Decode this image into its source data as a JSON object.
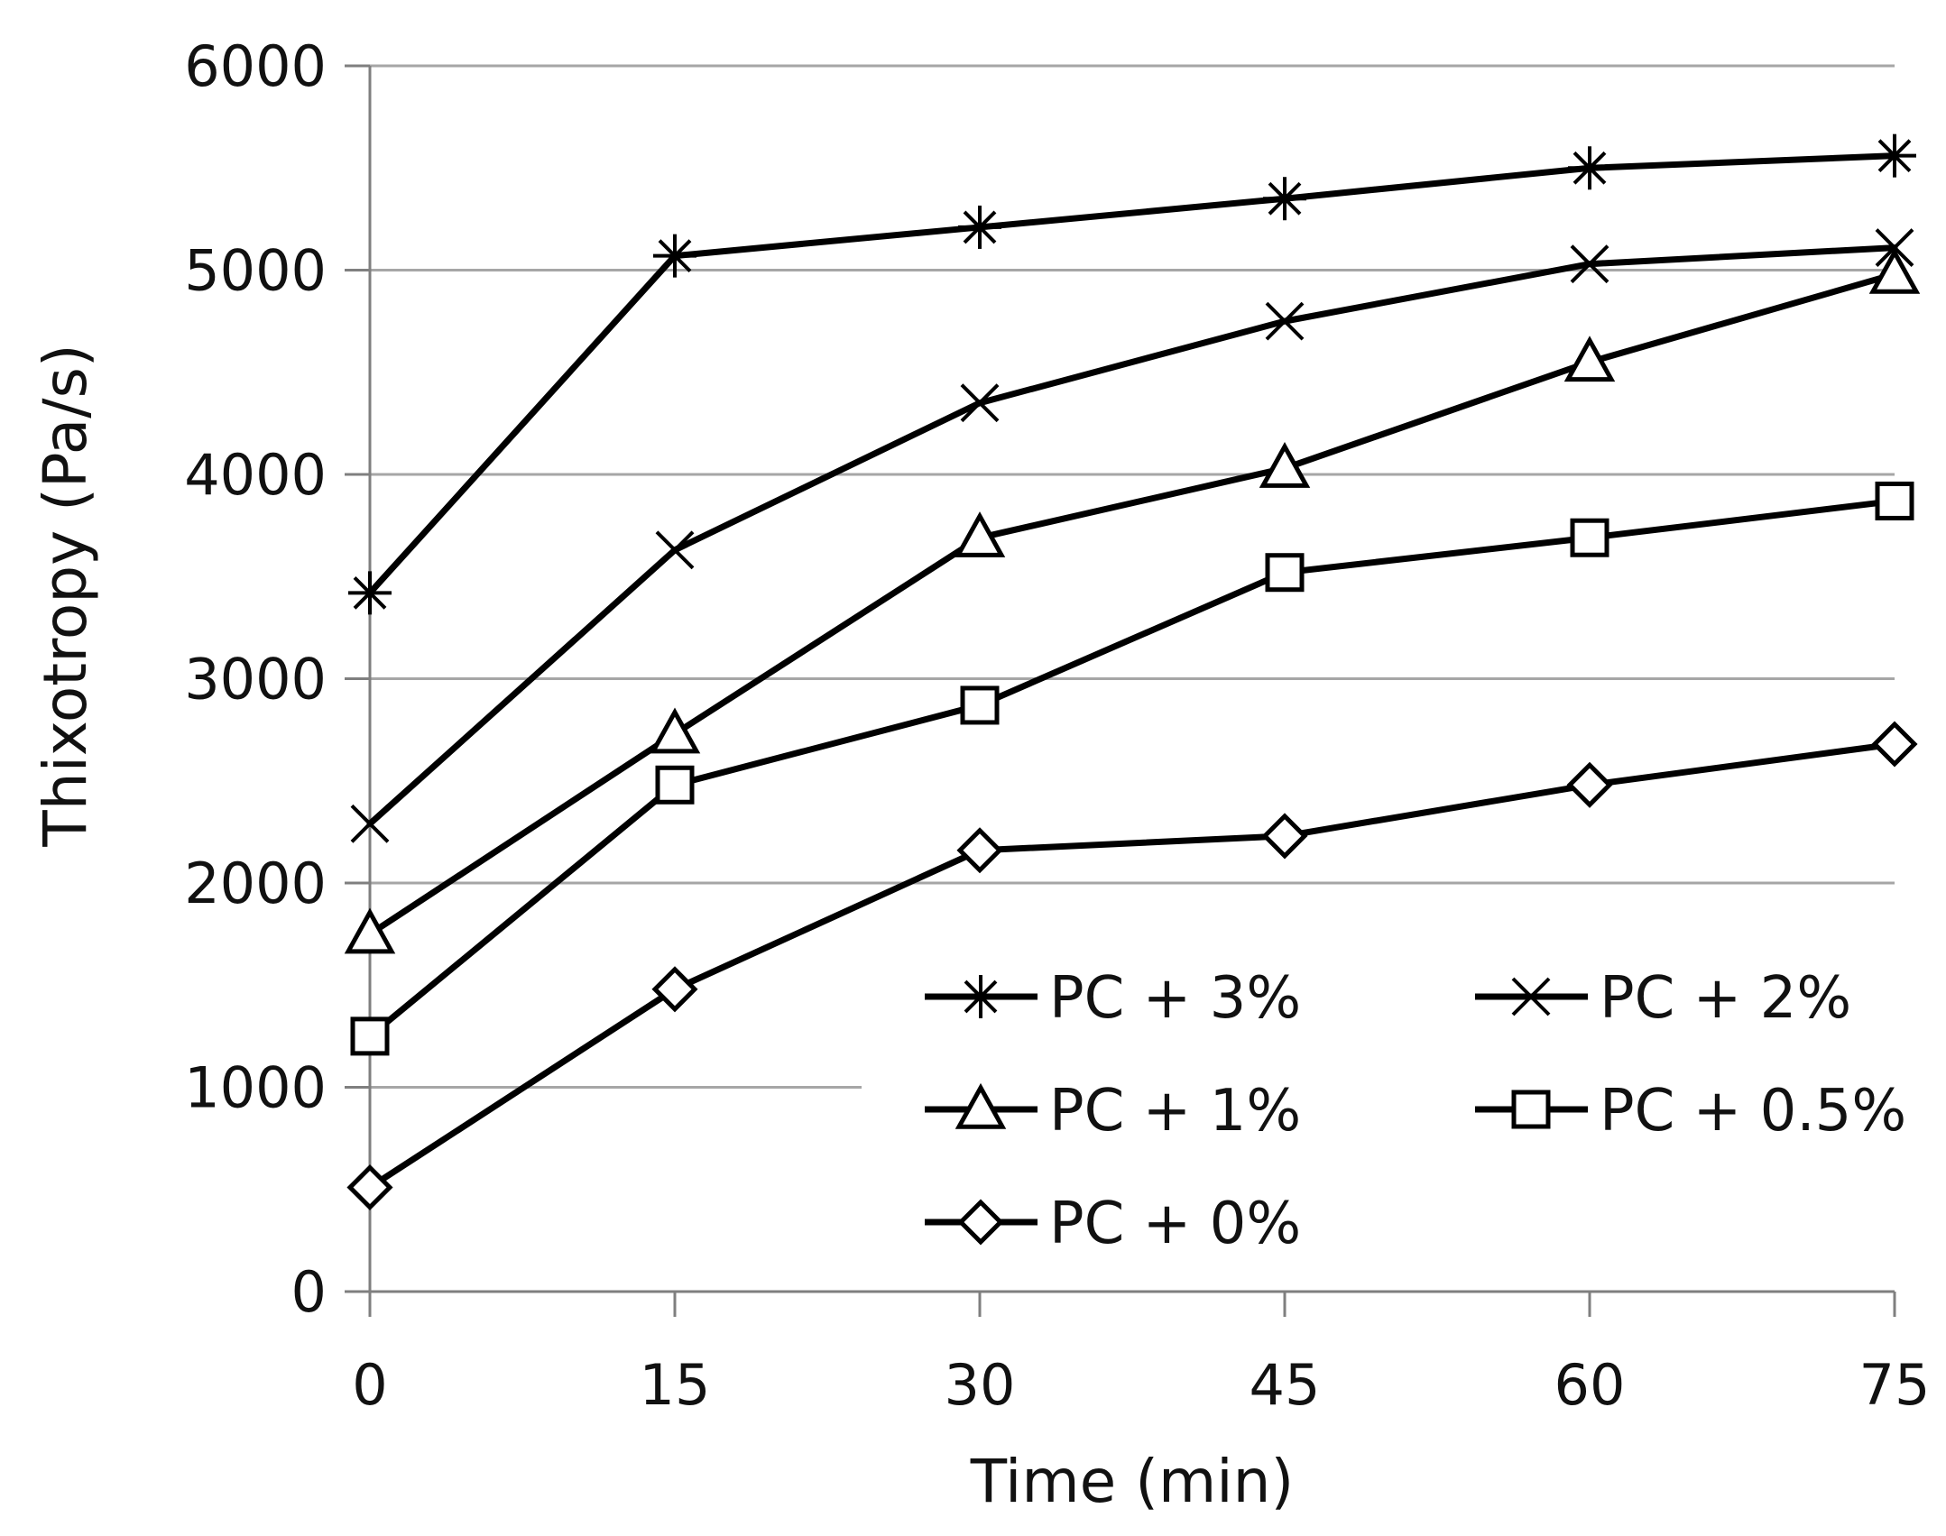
{
  "chart_data": {
    "type": "line",
    "title": "",
    "xlabel": "Time (min)",
    "ylabel": "Thixotropy (Pa/s)",
    "x": [
      0,
      15,
      30,
      45,
      60,
      75
    ],
    "xticks": [
      "0",
      "15",
      "30",
      "45",
      "60",
      "75"
    ],
    "xlim": [
      0,
      75
    ],
    "ylim": [
      0,
      6000
    ],
    "yticks": [
      "0",
      "1000",
      "2000",
      "3000",
      "4000",
      "5000",
      "6000"
    ],
    "grid": "horizontal",
    "legend_position": "bottom-right",
    "series": [
      {
        "name": "PC + 3%",
        "marker": "asterisk",
        "values": [
          3420,
          5070,
          5210,
          5350,
          5500,
          5560
        ]
      },
      {
        "name": "PC + 2%",
        "marker": "cross",
        "values": [
          2290,
          3630,
          4350,
          4750,
          5030,
          5110
        ]
      },
      {
        "name": "PC + 1%",
        "marker": "triangle",
        "values": [
          1750,
          2730,
          3690,
          4030,
          4550,
          4980
        ]
      },
      {
        "name": "PC + 0.5%",
        "marker": "square",
        "values": [
          1250,
          2480,
          2870,
          3520,
          3690,
          3870
        ]
      },
      {
        "name": "PC + 0%",
        "marker": "diamond",
        "values": [
          510,
          1480,
          2160,
          2230,
          2480,
          2680
        ]
      }
    ],
    "colors": {
      "line": "#000000",
      "marker_fill": "#ffffff",
      "grid": "#a6a6a6",
      "axis": "#7f7f7f"
    }
  }
}
